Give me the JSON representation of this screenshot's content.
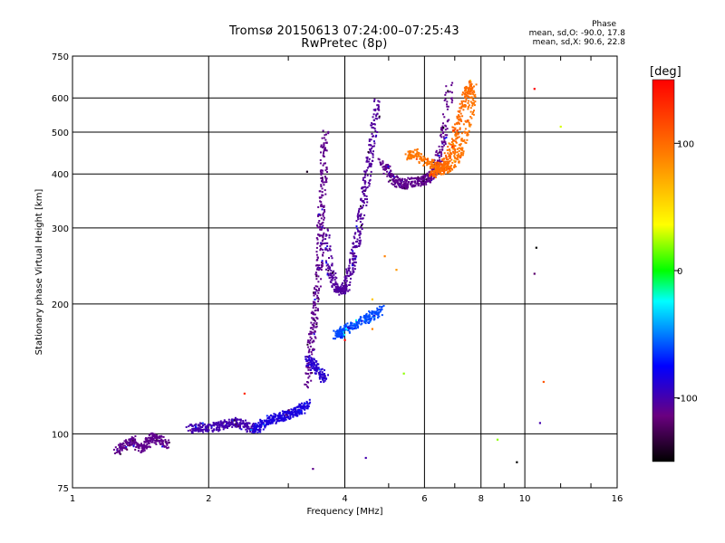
{
  "header": {
    "title": "Tromsø 20150613 07:24:00–07:25:43",
    "subtitle": "RwPretec (8p)"
  },
  "phase_info": {
    "heading": "Phase",
    "line_o": "mean, sd,O: -90.0, 17.8",
    "line_x": "mean, sd,X:  90.6, 22.8"
  },
  "chart_data": {
    "type": "scatter",
    "title": "Tromsø 20150613 07:24:00–07:25:43",
    "subtitle": "RwPretec (8p)",
    "xlabel": "Frequency [MHz]",
    "ylabel": "Stationary phase Virtual Height [km]",
    "x_scale": "log",
    "y_scale": "log",
    "xlim": [
      1,
      16
    ],
    "ylim": [
      75,
      750
    ],
    "x_ticks": [
      1,
      2,
      4,
      6,
      8,
      10,
      16
    ],
    "x_tick_labels": [
      "1",
      "2",
      "4",
      "6",
      "8",
      "10",
      "16"
    ],
    "y_ticks": [
      75,
      100,
      200,
      300,
      400,
      500,
      600,
      750
    ],
    "y_tick_labels": [
      "75",
      "100",
      "200",
      "300",
      "400",
      "500",
      "600",
      "750"
    ],
    "grid": true,
    "colorbar": {
      "label": "[deg]",
      "min": -150,
      "max": 150,
      "ticks": [
        100,
        0,
        -100
      ],
      "tick_labels": [
        "100",
        "0",
        "-100"
      ]
    },
    "traces": [
      {
        "type": "band",
        "x": [
          1.25,
          1.3,
          1.35,
          1.4,
          1.45,
          1.5,
          1.55,
          1.6
        ],
        "y": [
          92,
          94,
          97,
          93,
          95,
          99,
          97,
          95
        ],
        "phase": -110
      },
      {
        "type": "band",
        "x": [
          1.8,
          1.9,
          2.0,
          2.1,
          2.2,
          2.3,
          2.4,
          2.5
        ],
        "y": [
          103,
          104,
          103,
          105,
          106,
          107,
          105,
          103
        ],
        "phase": -100
      },
      {
        "type": "band",
        "x": [
          2.5,
          2.6,
          2.7,
          2.8,
          2.9,
          3.0,
          3.1,
          3.2,
          3.3
        ],
        "y": [
          103,
          105,
          108,
          109,
          110,
          112,
          113,
          115,
          118
        ],
        "phase": -85
      },
      {
        "type": "band",
        "x": [
          3.3,
          3.35,
          3.4,
          3.45,
          3.5,
          3.52,
          3.55,
          3.58,
          3.6
        ],
        "y": [
          130,
          160,
          180,
          210,
          250,
          300,
          350,
          420,
          500
        ],
        "phase": -110
      },
      {
        "type": "band",
        "x": [
          3.6,
          3.7,
          3.8,
          3.9,
          4.0,
          4.1,
          4.2,
          4.3,
          4.4,
          4.5,
          4.6,
          4.7
        ],
        "y": [
          300,
          240,
          220,
          215,
          220,
          240,
          270,
          310,
          360,
          420,
          490,
          590
        ],
        "phase": -105
      },
      {
        "type": "band",
        "x": [
          4.8,
          5.0,
          5.2,
          5.4,
          5.6,
          5.8,
          6.0,
          6.2,
          6.4,
          6.6,
          6.8
        ],
        "y": [
          430,
          400,
          385,
          380,
          385,
          385,
          390,
          400,
          430,
          500,
          640
        ],
        "phase": -110
      },
      {
        "type": "band",
        "x": [
          5.5,
          5.7,
          6.0,
          6.3,
          6.6,
          6.9,
          7.2,
          7.5,
          7.7
        ],
        "y": [
          440,
          450,
          430,
          420,
          410,
          420,
          460,
          540,
          640
        ],
        "phase": 95
      },
      {
        "type": "band",
        "x": [
          6.2,
          6.4,
          6.6,
          6.8,
          7.0,
          7.2,
          7.4,
          7.6
        ],
        "y": [
          400,
          410,
          420,
          450,
          500,
          560,
          620,
          650
        ],
        "phase": 100
      },
      {
        "type": "band",
        "x": [
          3.8,
          3.9,
          4.0,
          4.2,
          4.4,
          4.6,
          4.8
        ],
        "y": [
          170,
          172,
          175,
          180,
          185,
          190,
          195
        ],
        "phase": -60
      },
      {
        "type": "band",
        "x": [
          3.3,
          3.4,
          3.5,
          3.6
        ],
        "y": [
          150,
          145,
          140,
          135
        ],
        "phase": -90
      }
    ],
    "points": [
      {
        "x": 3.3,
        "y": 405,
        "phase": -140
      },
      {
        "x": 3.4,
        "y": 83,
        "phase": -110
      },
      {
        "x": 4.45,
        "y": 88,
        "phase": -100
      },
      {
        "x": 4.6,
        "y": 175,
        "phase": 90
      },
      {
        "x": 4.9,
        "y": 258,
        "phase": 90
      },
      {
        "x": 4.6,
        "y": 205,
        "phase": 60
      },
      {
        "x": 5.2,
        "y": 240,
        "phase": 80
      },
      {
        "x": 5.4,
        "y": 138,
        "phase": 20
      },
      {
        "x": 8.7,
        "y": 97,
        "phase": 20
      },
      {
        "x": 9.6,
        "y": 86,
        "phase": -150
      },
      {
        "x": 10.5,
        "y": 630,
        "phase": 150
      },
      {
        "x": 10.6,
        "y": 270,
        "phase": -150
      },
      {
        "x": 10.5,
        "y": 235,
        "phase": -120
      },
      {
        "x": 10.8,
        "y": 106,
        "phase": -100
      },
      {
        "x": 11.0,
        "y": 132,
        "phase": 110
      },
      {
        "x": 12.0,
        "y": 515,
        "phase": 30
      },
      {
        "x": 4.0,
        "y": 165,
        "phase": 150
      },
      {
        "x": 2.4,
        "y": 124,
        "phase": 130
      }
    ]
  }
}
